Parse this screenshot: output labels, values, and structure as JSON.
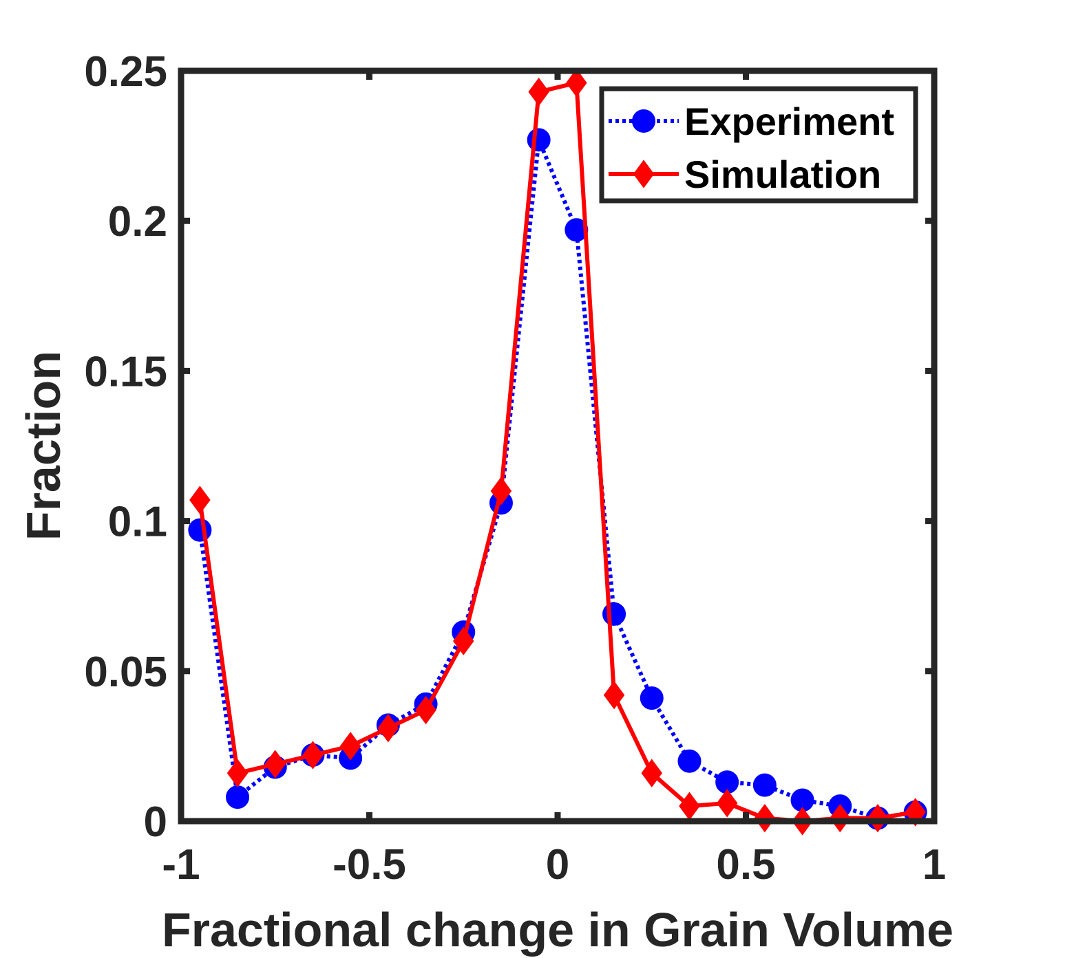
{
  "chart_data": {
    "type": "line",
    "title": "",
    "xlabel": "Fractional change in Grain Volume",
    "ylabel": "Fraction",
    "xlim": [
      -1,
      1
    ],
    "ylim": [
      0,
      0.25
    ],
    "xticks": [
      -1,
      -0.5,
      0,
      0.5,
      1
    ],
    "xtick_labels": [
      "-1",
      "-0.5",
      "0",
      "0.5",
      "1"
    ],
    "yticks": [
      0,
      0.05,
      0.1,
      0.15,
      0.2,
      0.25
    ],
    "ytick_labels": [
      "0",
      "0.05",
      "0.1",
      "0.15",
      "0.2",
      "0.25"
    ],
    "grid": false,
    "legend_position": "top-right",
    "x": [
      -0.95,
      -0.85,
      -0.75,
      -0.65,
      -0.55,
      -0.45,
      -0.35,
      -0.25,
      -0.15,
      -0.05,
      0.05,
      0.15,
      0.25,
      0.35,
      0.45,
      0.55,
      0.65,
      0.75,
      0.85,
      0.95
    ],
    "series": [
      {
        "name": "Experiment",
        "color": "#0000ff",
        "line_style": "dotted",
        "marker": "circle",
        "values": [
          0.097,
          0.008,
          0.018,
          0.022,
          0.021,
          0.032,
          0.039,
          0.063,
          0.106,
          0.227,
          0.197,
          0.069,
          0.041,
          0.02,
          0.013,
          0.012,
          0.007,
          0.005,
          0.001,
          0.003
        ]
      },
      {
        "name": "Simulation",
        "color": "#ff0000",
        "line_style": "solid",
        "marker": "diamond",
        "values": [
          0.107,
          0.016,
          0.019,
          0.022,
          0.025,
          0.031,
          0.037,
          0.06,
          0.11,
          0.243,
          0.246,
          0.042,
          0.016,
          0.005,
          0.006,
          0.001,
          0.0,
          0.001,
          0.001,
          0.003
        ]
      }
    ]
  }
}
